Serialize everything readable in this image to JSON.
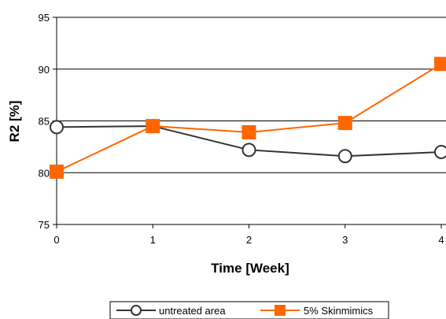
{
  "chart_data": {
    "type": "line",
    "xlabel": "Time [Week]",
    "ylabel": "R2 [%]",
    "x": [
      0,
      1,
      2,
      3,
      4
    ],
    "ylim": [
      75,
      95
    ],
    "yticks": [
      75,
      80,
      85,
      90,
      95
    ],
    "grid": true,
    "legend_position": "bottom",
    "series": [
      {
        "name": "untreated area",
        "values": [
          84.4,
          84.5,
          82.2,
          81.6,
          82.0
        ],
        "color": "#333333",
        "marker": "open-circle"
      },
      {
        "name": "5% Skinmimics",
        "values": [
          80.1,
          84.5,
          83.9,
          84.8,
          90.5
        ],
        "color": "#ff6600",
        "marker": "filled-square"
      }
    ]
  }
}
